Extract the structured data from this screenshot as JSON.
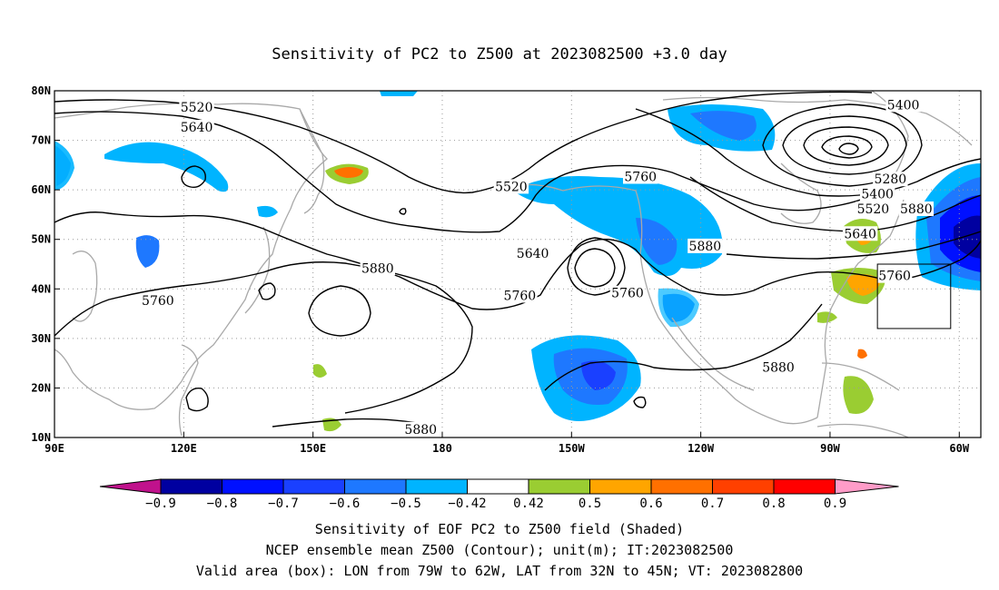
{
  "title": "Sensitivity of PC2 to Z500 at 2023082500 +3.0 day",
  "map": {
    "lon_range": [
      90,
      305
    ],
    "lat_range": [
      10,
      80
    ],
    "lat_labels": [
      "10N",
      "20N",
      "30N",
      "40N",
      "50N",
      "60N",
      "70N",
      "80N"
    ],
    "lat_values": [
      10,
      20,
      30,
      40,
      50,
      60,
      70,
      80
    ],
    "lon_labels": [
      "90E",
      "120E",
      "150E",
      "180",
      "150W",
      "120W",
      "90W",
      "60W"
    ],
    "lon_values": [
      90,
      120,
      150,
      180,
      210,
      240,
      270,
      300
    ],
    "contour_labels": [
      {
        "text": "5520",
        "lon": 123,
        "lat": 76.5
      },
      {
        "text": "5640",
        "lon": 123,
        "lat": 72.5
      },
      {
        "text": "5520",
        "lon": 196,
        "lat": 60.5
      },
      {
        "text": "5760",
        "lon": 114,
        "lat": 37.5
      },
      {
        "text": "5880",
        "lon": 165,
        "lat": 44
      },
      {
        "text": "5640",
        "lon": 201,
        "lat": 47
      },
      {
        "text": "5760",
        "lon": 198,
        "lat": 38.5
      },
      {
        "text": "5760",
        "lon": 223,
        "lat": 39
      },
      {
        "text": "5760",
        "lon": 226,
        "lat": 62.5
      },
      {
        "text": "5880",
        "lon": 241,
        "lat": 48.5
      },
      {
        "text": "5880",
        "lon": 290,
        "lat": 56
      },
      {
        "text": "5400",
        "lon": 287,
        "lat": 77
      },
      {
        "text": "5280",
        "lon": 284,
        "lat": 62
      },
      {
        "text": "5400",
        "lon": 281,
        "lat": 59
      },
      {
        "text": "5520",
        "lon": 280,
        "lat": 56
      },
      {
        "text": "5640",
        "lon": 277,
        "lat": 51
      },
      {
        "text": "5760",
        "lon": 285,
        "lat": 42.5
      },
      {
        "text": "5880",
        "lon": 258,
        "lat": 24
      },
      {
        "text": "5880",
        "lon": 175,
        "lat": 11.5
      }
    ],
    "valid_box": {
      "lon_min": 281,
      "lon_max": 298,
      "lat_min": 32,
      "lat_max": 45
    },
    "colors": {
      "neg_09": "#0000a0",
      "neg_08": "#0010ff",
      "neg_07": "#1a40ff",
      "neg_06": "#1e78ff",
      "neg_05": "#00b4ff",
      "white": "#ffffff",
      "pos_042": "#9acd32",
      "pos_05": "#ffa500",
      "pos_06": "#ff7000",
      "pos_07": "#ff4000",
      "pos_08": "#ff0000",
      "ext_low": "#c0128c",
      "ext_high": "#ff9cc8",
      "coast": "#a9a9a9"
    }
  },
  "colorbar": {
    "labels": [
      "-0.9",
      "-0.8",
      "-0.7",
      "-0.6",
      "-0.5",
      "-0.42",
      "0.42",
      "0.5",
      "0.6",
      "0.7",
      "0.8",
      "0.9"
    ],
    "colors": [
      "#0000a0",
      "#0010ff",
      "#1a40ff",
      "#1e78ff",
      "#00b4ff",
      "#ffffff",
      "#9acd32",
      "#ffa500",
      "#ff7000",
      "#ff4000",
      "#ff0000"
    ],
    "ext_low": "#c0128c",
    "ext_high": "#ff9cc8"
  },
  "caption": {
    "line1": "Sensitivity of EOF PC2 to Z500 field (Shaded)",
    "line2": "NCEP ensemble mean Z500 (Contour); unit(m); IT:2023082500",
    "line3": "Valid area (box): LON from 79W to 62W, LAT from 32N to 45N; VT: 2023082800"
  }
}
